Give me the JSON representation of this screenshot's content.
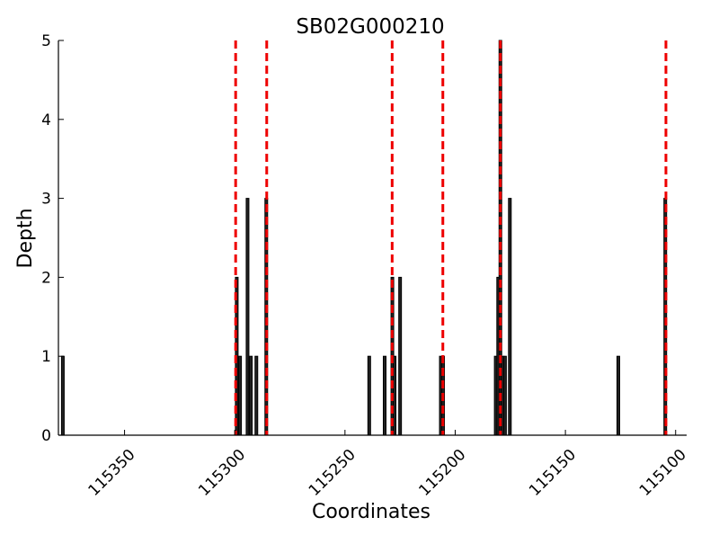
{
  "chart_data": {
    "type": "bar",
    "title": "SB02G000210",
    "xlabel": "Coordinates",
    "ylabel": "Depth",
    "xlim": [
      115380,
      115095
    ],
    "ylim": [
      0,
      5
    ],
    "x_reversed": true,
    "grid": false,
    "legend": "none",
    "xticks": [
      115350,
      115300,
      115250,
      115200,
      115150,
      115100
    ],
    "xtick_labels": [
      "115350",
      "115300",
      "115250",
      "115200",
      "115150",
      "115100"
    ],
    "yticks": [
      0,
      1,
      2,
      3,
      4,
      5
    ],
    "ytick_labels": [
      "0",
      "1",
      "2",
      "3",
      "4",
      "5"
    ],
    "bars": [
      {
        "x": 115378.0,
        "value": 1
      },
      {
        "x": 115299.1,
        "value": 2
      },
      {
        "x": 115297.6,
        "value": 1
      },
      {
        "x": 115294.2,
        "value": 3
      },
      {
        "x": 115292.7,
        "value": 1
      },
      {
        "x": 115290.2,
        "value": 1
      },
      {
        "x": 115285.7,
        "value": 3
      },
      {
        "x": 115239.0,
        "value": 1
      },
      {
        "x": 115232.0,
        "value": 1
      },
      {
        "x": 115228.5,
        "value": 2
      },
      {
        "x": 115227.5,
        "value": 1
      },
      {
        "x": 115225.0,
        "value": 2
      },
      {
        "x": 115206.5,
        "value": 1
      },
      {
        "x": 115205.5,
        "value": 1
      },
      {
        "x": 115181.6,
        "value": 1
      },
      {
        "x": 115180.5,
        "value": 2
      },
      {
        "x": 115179.5,
        "value": 5
      },
      {
        "x": 115178.5,
        "value": 1
      },
      {
        "x": 115177.4,
        "value": 1
      },
      {
        "x": 115175.2,
        "value": 3
      },
      {
        "x": 115126.0,
        "value": 1
      },
      {
        "x": 115104.7,
        "value": 3
      }
    ],
    "reference_lines": [
      115299.6,
      115285.5,
      115228.6,
      115205.6,
      115179.5,
      115104.4
    ],
    "colors": {
      "bar_fill": "#222222",
      "bar_edge": "#000000",
      "reference_line": "#ee0000",
      "axis": "#000000"
    }
  }
}
